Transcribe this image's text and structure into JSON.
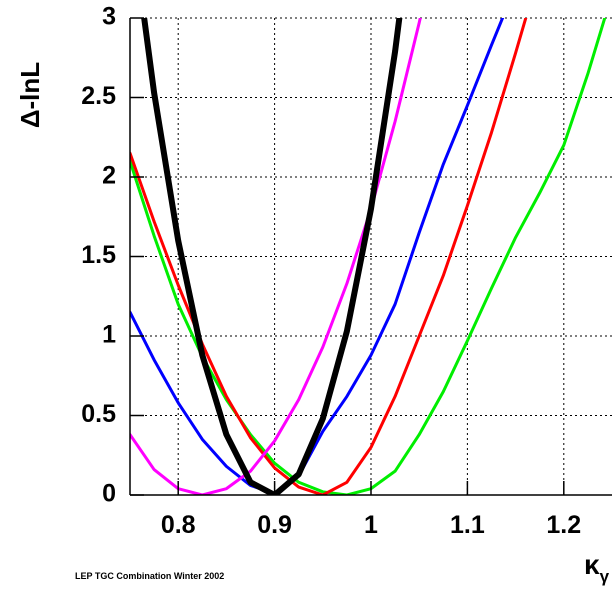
{
  "chart_data": {
    "type": "line",
    "y_label": "Δ-lnL",
    "x_label": "κ",
    "x_label_subscript": "γ",
    "footnote": "LEP TGC Combination Winter 2002",
    "x": [
      0.75,
      0.775,
      0.8,
      0.825,
      0.85,
      0.875,
      0.9,
      0.925,
      0.95,
      0.975,
      1.0,
      1.025,
      1.05,
      1.075,
      1.1,
      1.125,
      1.15,
      1.175,
      1.2,
      1.225,
      1.25
    ],
    "series": [
      {
        "color": "#000000",
        "values": [
          3.67,
          2.53,
          1.6,
          0.88,
          0.38,
          0.08,
          0.0,
          0.13,
          0.48,
          1.03,
          1.8,
          2.79,
          3.98,
          null,
          null,
          null,
          null,
          null,
          null,
          null,
          null
        ]
      },
      {
        "color": "#ff00ff",
        "values": [
          0.38,
          0.16,
          0.04,
          0.0,
          0.04,
          0.15,
          0.34,
          0.6,
          0.93,
          1.33,
          1.8,
          2.35,
          2.97,
          3.65,
          null,
          null,
          null,
          null,
          null,
          null,
          null
        ]
      },
      {
        "color": "#0000ff",
        "values": [
          1.15,
          0.85,
          0.58,
          0.35,
          0.18,
          0.06,
          0.01,
          0.12,
          0.4,
          0.62,
          0.88,
          1.2,
          1.65,
          2.08,
          2.45,
          2.83,
          3.2,
          null,
          null,
          null,
          null
        ]
      },
      {
        "color": "#ff0000",
        "values": [
          2.15,
          1.72,
          1.32,
          0.95,
          0.62,
          0.36,
          0.17,
          0.05,
          0.0,
          0.08,
          0.3,
          0.62,
          1.0,
          1.38,
          1.82,
          2.28,
          2.78,
          3.3,
          null,
          null,
          null
        ]
      },
      {
        "color": "#00ee00",
        "values": [
          2.1,
          1.63,
          1.2,
          0.87,
          0.6,
          0.38,
          0.2,
          0.08,
          0.02,
          0.0,
          0.04,
          0.15,
          0.38,
          0.65,
          0.97,
          1.3,
          1.62,
          1.9,
          2.2,
          2.65,
          3.15
        ]
      }
    ],
    "xlim": [
      0.75,
      1.25
    ],
    "ylim": [
      0,
      3
    ],
    "xticks": [
      0.8,
      0.9,
      1,
      1.1,
      1.2
    ],
    "yticks": [
      0,
      0.5,
      1,
      1.5,
      2,
      2.5,
      3
    ],
    "grid": true
  }
}
